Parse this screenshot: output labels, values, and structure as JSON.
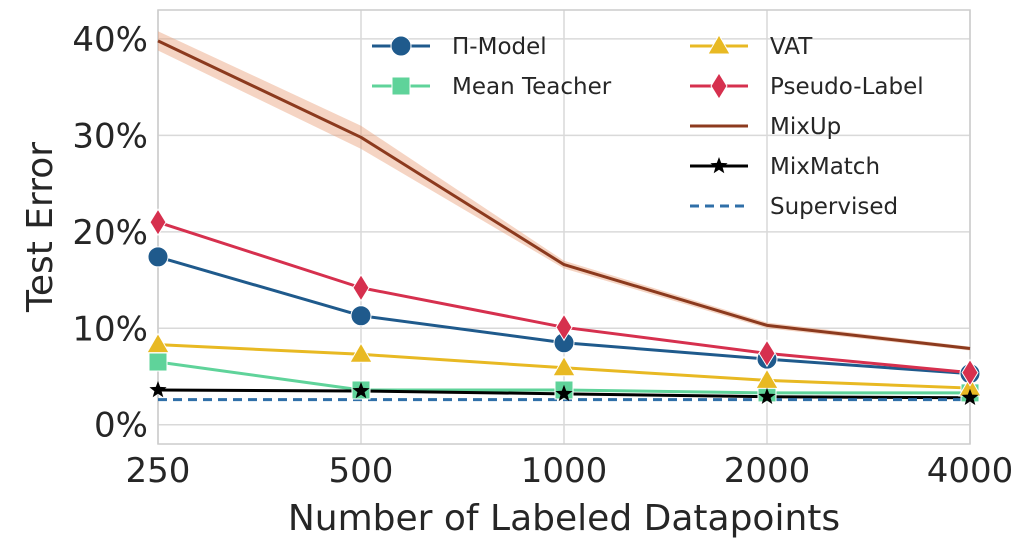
{
  "chart_data": {
    "type": "line",
    "title": "",
    "xlabel": "Number of Labeled Datapoints",
    "ylabel": "Test Error",
    "categories": [
      "250",
      "500",
      "1000",
      "2000",
      "4000"
    ],
    "yticks": [
      "0%",
      "10%",
      "20%",
      "30%",
      "40%"
    ],
    "ylim": [
      -2,
      43
    ],
    "grid": true,
    "legend_position": "top",
    "series": [
      {
        "name": "Π-Model",
        "values": [
          17.4,
          11.3,
          8.5,
          6.8,
          5.3
        ],
        "color": "#1f5a8c",
        "marker": "circle",
        "linestyle": "solid"
      },
      {
        "name": "Mean Teacher",
        "values": [
          6.5,
          3.6,
          3.6,
          3.3,
          3.3
        ],
        "color": "#5fd39a",
        "marker": "square",
        "linestyle": "solid"
      },
      {
        "name": "VAT",
        "values": [
          8.3,
          7.3,
          5.9,
          4.6,
          3.8
        ],
        "color": "#e8b923",
        "marker": "triangle",
        "linestyle": "solid"
      },
      {
        "name": "Pseudo-Label",
        "values": [
          21.0,
          14.2,
          10.1,
          7.4,
          5.4
        ],
        "color": "#d6304e",
        "marker": "diamond",
        "linestyle": "solid"
      },
      {
        "name": "MixUp",
        "values": [
          39.8,
          29.8,
          16.6,
          10.3,
          7.9
        ],
        "color": "#8c3a1e",
        "marker": "none",
        "linestyle": "solid",
        "band": [
          1.0,
          1.2,
          0.4,
          0.3,
          0.2
        ]
      },
      {
        "name": "MixMatch",
        "values": [
          3.6,
          3.5,
          3.2,
          2.9,
          2.8
        ],
        "color": "#000000",
        "marker": "star",
        "linestyle": "solid"
      },
      {
        "name": "Supervised",
        "values": [
          2.6,
          2.6,
          2.6,
          2.6,
          2.6
        ],
        "color": "#2f6fa8",
        "marker": "none",
        "linestyle": "dashed"
      }
    ]
  }
}
